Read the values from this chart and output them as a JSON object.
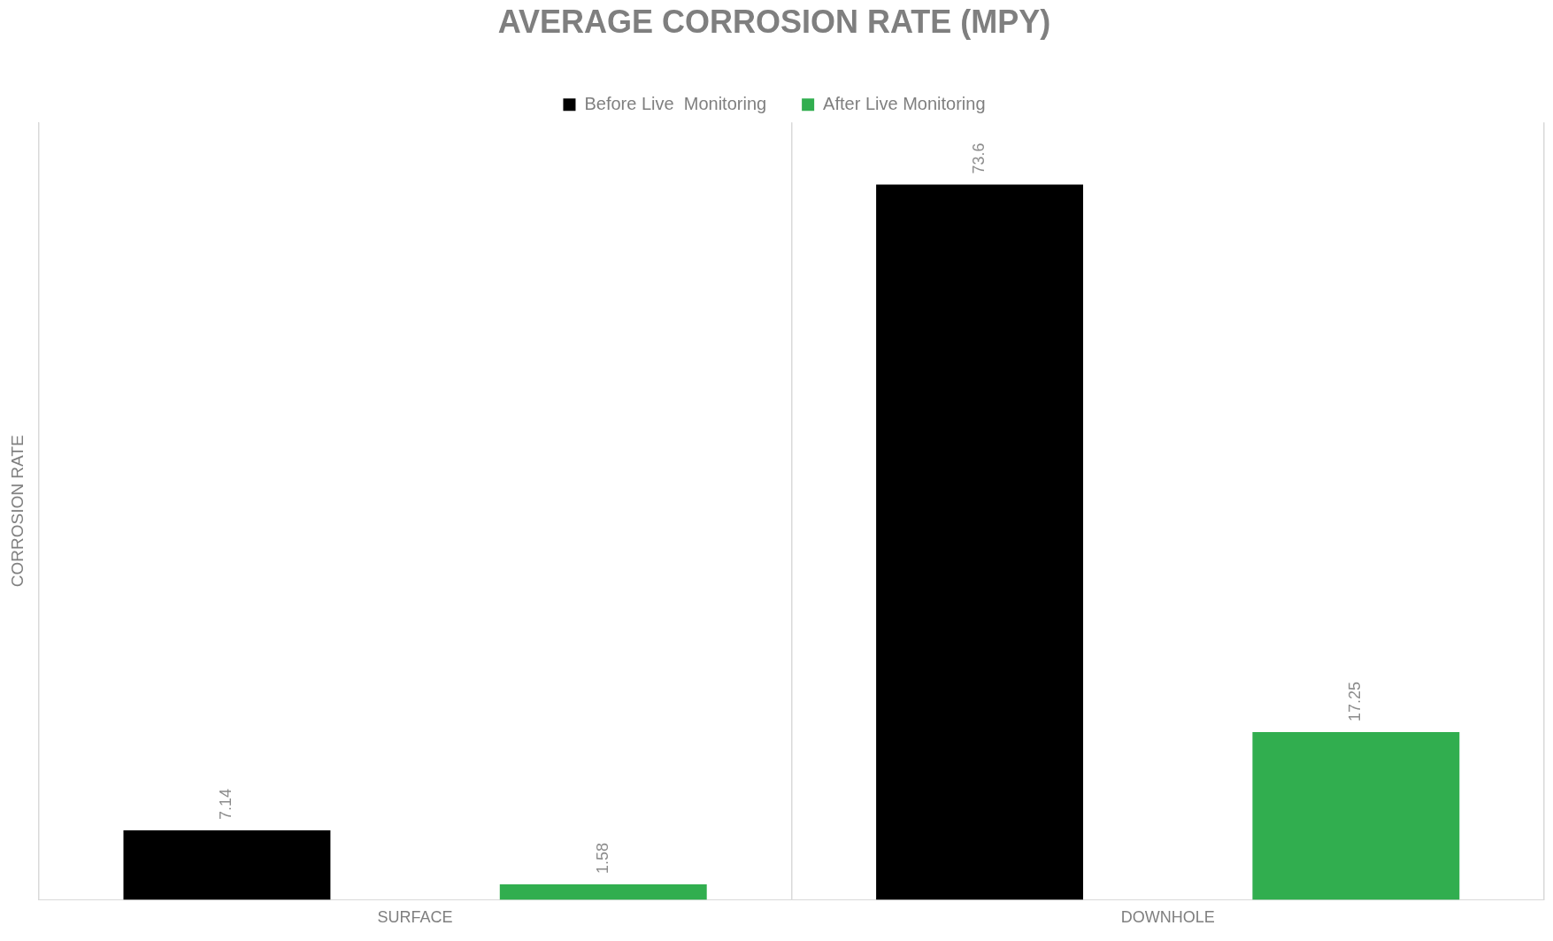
{
  "chart_data": {
    "type": "bar",
    "title": "AVERAGE CORROSION RATE (MPY)",
    "ylabel": "CORROSION RATE",
    "categories": [
      "SURFACE",
      "DOWNHOLE"
    ],
    "series": [
      {
        "name": "Before Live  Monitoring",
        "color": "#000000",
        "values": [
          7.14,
          73.6
        ]
      },
      {
        "name": "After Live Monitoring",
        "color": "#31ae4f",
        "values": [
          1.58,
          17.25
        ]
      }
    ],
    "ylim": [
      0,
      80
    ],
    "tick_labels": "x",
    "grid": "x",
    "legend": "top",
    "data_labels": true
  }
}
